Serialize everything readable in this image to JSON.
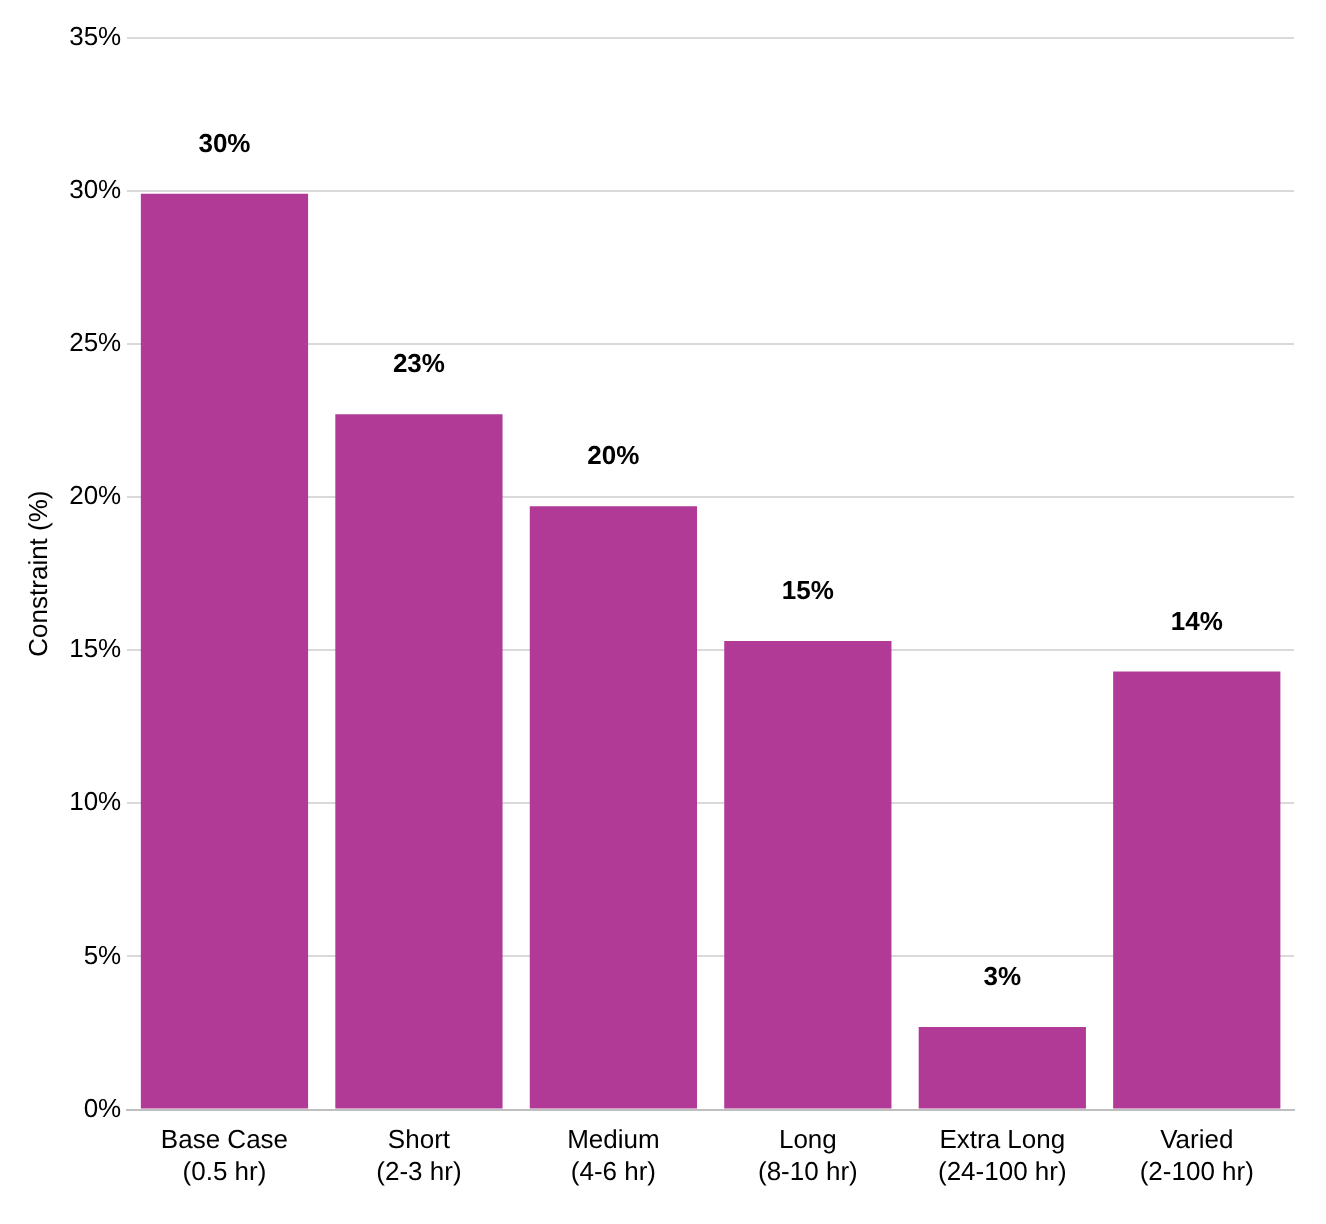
{
  "chart_data": {
    "type": "bar",
    "ylabel": "Constraint (%)",
    "categories": [
      "Base Case\n(0.5 hr)",
      "Short\n(2-3 hr)",
      "Medium\n(4-6 hr)",
      "Long\n(8-10 hr)",
      "Extra Long\n(24-100 hr)",
      "Varied\n(2-100 hr)"
    ],
    "values": [
      29.9,
      22.7,
      19.7,
      15.3,
      2.7,
      14.3
    ],
    "value_labels": [
      "30%",
      "23%",
      "20%",
      "15%",
      "3%",
      "14%"
    ],
    "color": "#b03a96",
    "ylim": [
      0,
      35
    ],
    "yticks": [
      {
        "value": 0,
        "label": "0%"
      },
      {
        "value": 5,
        "label": "5%"
      },
      {
        "value": 10,
        "label": "10%"
      },
      {
        "value": 15,
        "label": "15%"
      },
      {
        "value": 20,
        "label": "20%"
      },
      {
        "value": 25,
        "label": "25%"
      },
      {
        "value": 30,
        "label": "30%"
      },
      {
        "value": 35,
        "label": "35%"
      }
    ],
    "grid": "y",
    "legend": false
  }
}
